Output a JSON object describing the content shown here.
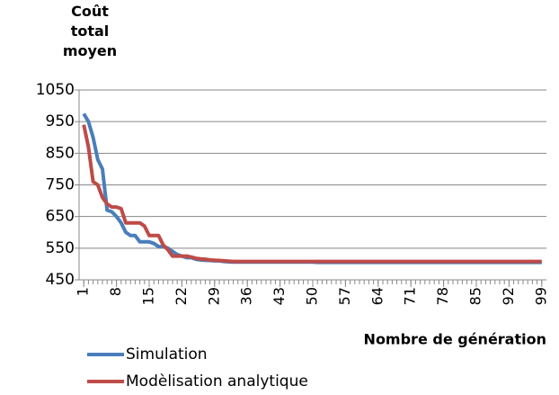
{
  "chart_data": {
    "type": "line",
    "y_label": "Coût total moyen",
    "x_label": "Nombre de génération",
    "x": [
      1,
      2,
      3,
      4,
      5,
      6,
      7,
      8,
      9,
      10,
      11,
      12,
      13,
      14,
      15,
      16,
      17,
      18,
      19,
      20,
      21,
      22,
      23,
      24,
      25,
      26,
      27,
      28,
      29,
      30,
      31,
      32,
      33,
      34,
      35,
      36,
      37,
      38,
      39,
      40,
      41,
      42,
      43,
      44,
      45,
      46,
      47,
      48,
      49,
      50,
      51,
      52,
      53,
      54,
      55,
      56,
      57,
      58,
      59,
      60,
      61,
      62,
      63,
      64,
      65,
      66,
      67,
      68,
      69,
      70,
      71,
      72,
      73,
      74,
      75,
      76,
      77,
      78,
      79,
      80,
      81,
      82,
      83,
      84,
      85,
      86,
      87,
      88,
      89,
      90,
      91,
      92,
      93,
      94,
      95,
      96,
      97,
      98,
      99
    ],
    "xlim": [
      0,
      100
    ],
    "xticks": [
      1,
      8,
      15,
      22,
      29,
      36,
      43,
      50,
      57,
      64,
      71,
      78,
      85,
      92,
      99
    ],
    "ylim": [
      450,
      1050
    ],
    "yticks": [
      450,
      550,
      650,
      750,
      850,
      950,
      1050
    ],
    "grid": true,
    "series": [
      {
        "name": "Simulation",
        "color": "#4a7ebb",
        "values": [
          975,
          950,
          900,
          830,
          800,
          670,
          665,
          650,
          630,
          600,
          590,
          590,
          570,
          570,
          570,
          565,
          555,
          555,
          550,
          540,
          530,
          525,
          520,
          520,
          515,
          513,
          512,
          511,
          510,
          510,
          508,
          507,
          506,
          506,
          506,
          506,
          506,
          506,
          506,
          506,
          506,
          506,
          506,
          506,
          506,
          506,
          506,
          506,
          506,
          506,
          505,
          505,
          505,
          505,
          505,
          505,
          505,
          505,
          505,
          505,
          505,
          505,
          505,
          505,
          505,
          505,
          505,
          505,
          505,
          505,
          505,
          505,
          505,
          505,
          505,
          505,
          505,
          505,
          505,
          505,
          505,
          505,
          505,
          505,
          505,
          505,
          505,
          505,
          505,
          505,
          505,
          505,
          505,
          505,
          505,
          505,
          505,
          505,
          505
        ]
      },
      {
        "name": "Modèlisation analytique",
        "color": "#be4b48",
        "values": [
          940,
          870,
          760,
          750,
          710,
          690,
          680,
          680,
          675,
          630,
          630,
          630,
          630,
          620,
          590,
          590,
          590,
          560,
          545,
          525,
          525,
          525,
          525,
          522,
          518,
          516,
          515,
          513,
          512,
          511,
          510,
          509,
          508,
          508,
          508,
          508,
          508,
          508,
          508,
          508,
          508,
          508,
          508,
          508,
          508,
          508,
          508,
          508,
          508,
          508,
          508,
          508,
          508,
          508,
          508,
          508,
          508,
          508,
          508,
          508,
          508,
          508,
          508,
          508,
          508,
          508,
          508,
          508,
          508,
          508,
          508,
          508,
          508,
          508,
          508,
          508,
          508,
          508,
          508,
          508,
          508,
          508,
          508,
          508,
          508,
          508,
          508,
          508,
          508,
          508,
          508,
          508,
          508,
          508,
          508,
          508,
          508,
          508,
          508
        ]
      }
    ]
  }
}
